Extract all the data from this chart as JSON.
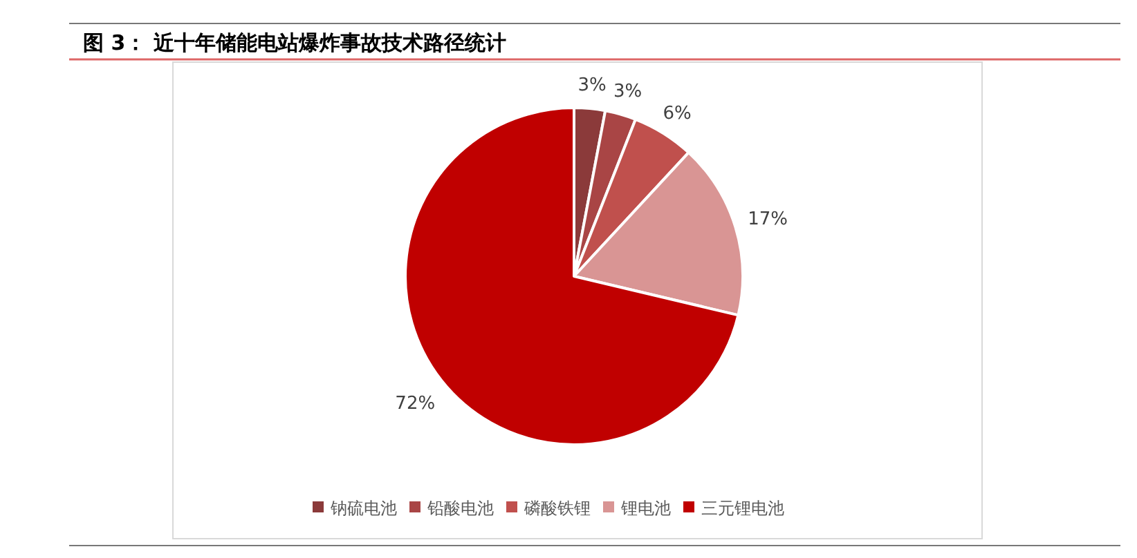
{
  "chart_data": {
    "type": "pie",
    "title": "图 3：  近十年储能电站爆炸事故技术路径统计",
    "categories": [
      "钠硫电池",
      "铅酸电池",
      "磷酸铁锂",
      "锂电池",
      "三元锂电池"
    ],
    "values": [
      3,
      3,
      6,
      17,
      72
    ],
    "colors": [
      "#8b3a3a",
      "#a94545",
      "#c0504d",
      "#d99594",
      "#c00000"
    ],
    "value_labels": [
      "3%",
      "3%",
      "6%",
      "17%",
      "72%"
    ],
    "legend": "bottom"
  }
}
